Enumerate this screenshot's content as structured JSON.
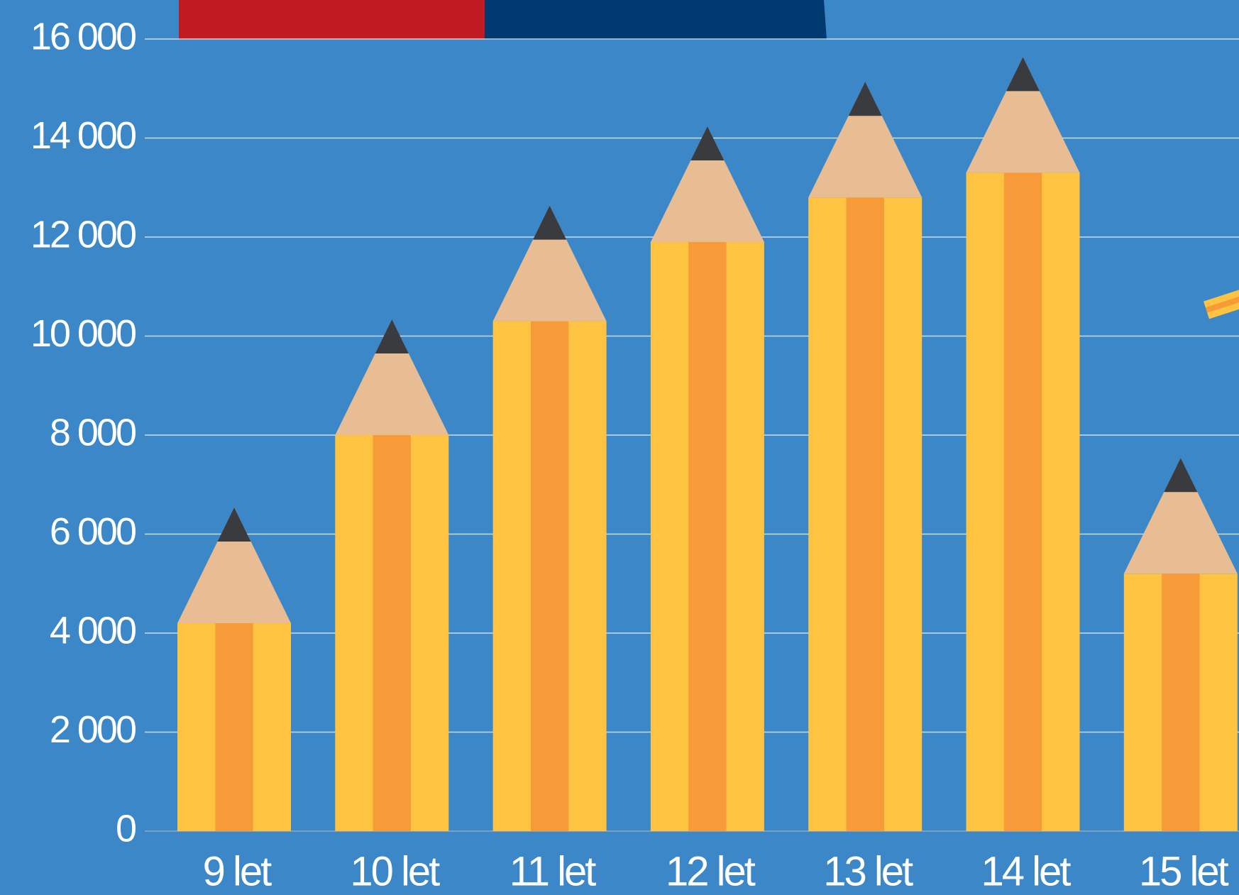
{
  "chart_data": {
    "type": "bar",
    "categories": [
      "9 let",
      "10 let",
      "11 let",
      "12 let",
      "13 let",
      "14 let",
      "15 let"
    ],
    "values": [
      4200,
      8000,
      10300,
      11900,
      12800,
      13300,
      5200
    ],
    "color": "#fec340",
    "ylim": [
      0,
      16000
    ],
    "yticks": [
      0,
      {
        "value": 2000,
        "label": "2 000"
      },
      {
        "value": 4000,
        "label": "4 000"
      },
      {
        "value": 6000,
        "label": "6 000"
      },
      {
        "value": 8000,
        "label": "8 000"
      },
      {
        "value": 10000,
        "label": "10 000"
      },
      {
        "value": 12000,
        "label": "12 000"
      },
      {
        "value": 14000,
        "label": "14 000"
      },
      {
        "value": 16000,
        "label": "16 000"
      }
    ],
    "grid": true
  }
}
